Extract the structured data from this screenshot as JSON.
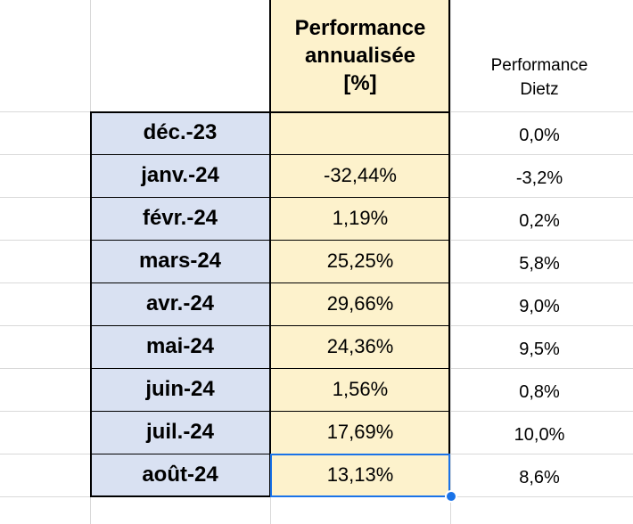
{
  "header": {
    "perf_line1": "Performance",
    "perf_line2": "annualisée",
    "perf_line3": "[%]",
    "dietz_line1": "Performance",
    "dietz_line2": "Dietz"
  },
  "rows": [
    {
      "month": "déc.-23",
      "perf": "",
      "dietz": "0,0%"
    },
    {
      "month": "janv.-24",
      "perf": "-32,44%",
      "dietz": "-3,2%"
    },
    {
      "month": "févr.-24",
      "perf": "1,19%",
      "dietz": "0,2%"
    },
    {
      "month": "mars-24",
      "perf": "25,25%",
      "dietz": "5,8%"
    },
    {
      "month": "avr.-24",
      "perf": "29,66%",
      "dietz": "9,0%"
    },
    {
      "month": "mai-24",
      "perf": "24,36%",
      "dietz": "9,5%"
    },
    {
      "month": "juin-24",
      "perf": "1,56%",
      "dietz": "0,8%"
    },
    {
      "month": "juil.-24",
      "perf": "17,69%",
      "dietz": "10,0%"
    },
    {
      "month": "août-24",
      "perf": "13,13%",
      "dietz": "8,6%"
    }
  ],
  "selection": {
    "active_cell_value": "13,13%",
    "color": "#1a73e8"
  },
  "colors": {
    "month_fill": "#d9e1f2",
    "perf_fill": "#fdf2cc",
    "gridline": "#d9d9d9"
  }
}
